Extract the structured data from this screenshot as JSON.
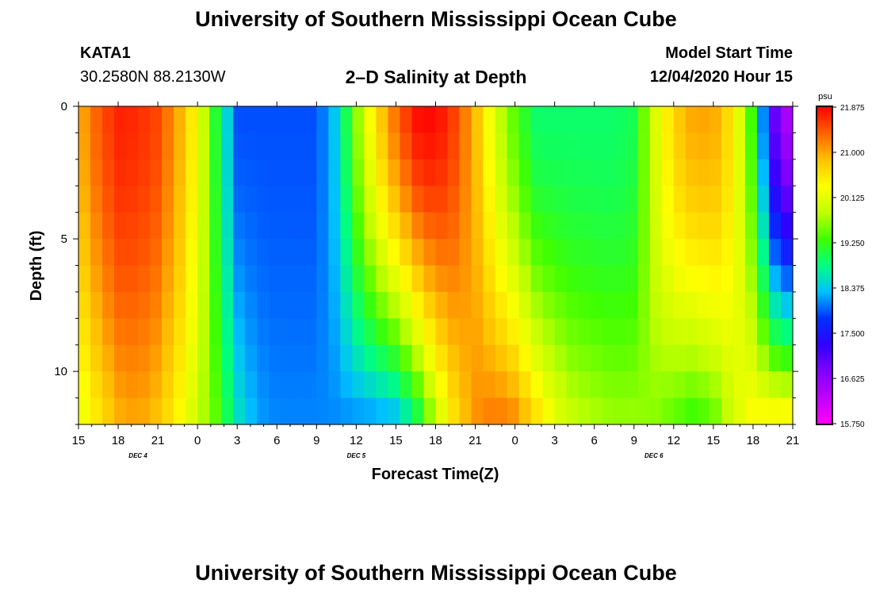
{
  "header": {
    "main_title": "University of Southern Mississippi Ocean Cube",
    "station_id": "KATA1",
    "station_coords": "30.2580N 88.2130W",
    "plot_title": "2–D Salinity at Depth",
    "model_label": "Model Start Time",
    "model_time": "12/04/2020 Hour 15"
  },
  "footer": {
    "title": "University of Southern Mississippi Ocean Cube"
  },
  "chart_data": {
    "type": "heatmap",
    "title": "2–D Salinity at Depth",
    "xlabel": "Forecast Time(Z)",
    "ylabel": "Depth (ft)",
    "x_range_hours": [
      0,
      54
    ],
    "y_range_ft": [
      0,
      12
    ],
    "x_tick_hours": [
      0,
      3,
      6,
      9,
      12,
      15,
      18,
      21,
      24,
      27,
      30,
      33,
      36,
      39,
      42,
      45,
      48,
      51,
      54
    ],
    "x_tick_labels": [
      "15",
      "18",
      "21",
      "0",
      "3",
      "6",
      "9",
      "12",
      "15",
      "18",
      "21",
      "0",
      "3",
      "6",
      "9",
      "12",
      "15",
      "18",
      "21"
    ],
    "date_labels": [
      {
        "hour": 4.5,
        "text": "DEC 4"
      },
      {
        "hour": 21,
        "text": "DEC 5"
      },
      {
        "hour": 43.5,
        "text": "DEC 6"
      }
    ],
    "y_ticks": [
      0,
      5,
      10
    ],
    "colorbar": {
      "unit": "psu",
      "min": 15.75,
      "max": 21.875,
      "tick_labels": [
        "21.875",
        "21.000",
        "20.125",
        "19.250",
        "18.375",
        "17.500",
        "16.625",
        "15.750"
      ],
      "gradient_colors": [
        "#ff00ff",
        "#c000ff",
        "#8000ff",
        "#3000ff",
        "#0030ff",
        "#00c0ff",
        "#00ff80",
        "#40ff00",
        "#c0ff00",
        "#ffff00",
        "#ffc000",
        "#ff6000",
        "#ff0000"
      ]
    },
    "anchors_hours": [
      0,
      1.5,
      3,
      4.5,
      6,
      7.5,
      9,
      10.5,
      12,
      13.5,
      15,
      16.5,
      18,
      19.5,
      21,
      22.5,
      24,
      25.5,
      27,
      28.5,
      30,
      31.5,
      33,
      34.5,
      36,
      37.5,
      39,
      40.5,
      42,
      43.5,
      45,
      46.5,
      48,
      49.5,
      51,
      52.5,
      54
    ],
    "surface_psu": [
      20.9,
      21.4,
      21.7,
      21.65,
      21.5,
      21.0,
      20.3,
      19.0,
      17.9,
      17.9,
      17.9,
      17.9,
      17.9,
      18.4,
      19.6,
      20.6,
      21.3,
      21.8,
      21.85,
      21.5,
      20.9,
      20.0,
      19.4,
      18.9,
      18.9,
      18.9,
      18.9,
      18.9,
      19.0,
      20.0,
      20.7,
      21.0,
      21.0,
      20.5,
      19.2,
      17.0,
      16.2
    ],
    "bottom_psu": [
      20.1,
      20.5,
      20.9,
      21.0,
      20.8,
      20.4,
      19.9,
      19.4,
      18.6,
      18.2,
      18.1,
      18.1,
      18.1,
      18.1,
      18.1,
      18.1,
      18.2,
      18.8,
      19.8,
      20.6,
      21.1,
      21.3,
      21.2,
      20.7,
      20.2,
      19.9,
      19.8,
      19.7,
      19.7,
      19.6,
      19.4,
      19.2,
      19.4,
      20.0,
      20.4,
      20.5,
      20.6
    ]
  }
}
